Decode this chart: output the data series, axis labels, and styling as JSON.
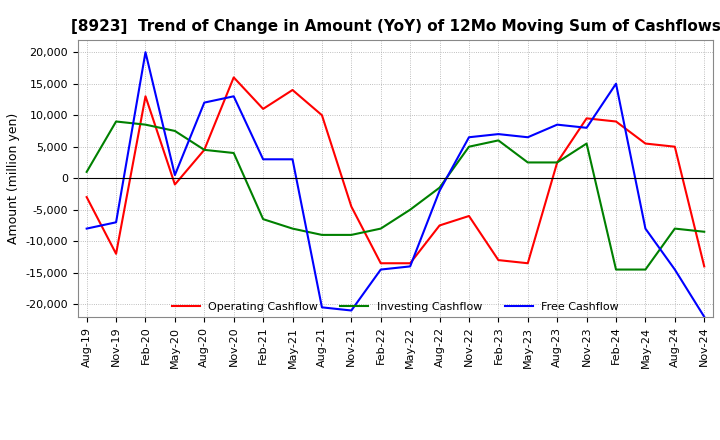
{
  "title": "[8923]  Trend of Change in Amount (YoY) of 12Mo Moving Sum of Cashflows",
  "ylabel": "Amount (million yen)",
  "ylim": [
    -22000,
    22000
  ],
  "yticks": [
    -20000,
    -15000,
    -10000,
    -5000,
    0,
    5000,
    10000,
    15000,
    20000
  ],
  "background_color": "#ffffff",
  "grid_color": "#aaaaaa",
  "labels": [
    "Aug-19",
    "Nov-19",
    "Feb-20",
    "May-20",
    "Aug-20",
    "Nov-20",
    "Feb-21",
    "May-21",
    "Aug-21",
    "Nov-21",
    "Feb-22",
    "May-22",
    "Aug-22",
    "Nov-22",
    "Feb-23",
    "May-23",
    "Aug-23",
    "Nov-23",
    "Feb-24",
    "May-24",
    "Aug-24",
    "Nov-24"
  ],
  "operating": [
    -3000,
    -12000,
    13000,
    -1000,
    4500,
    16000,
    11000,
    14000,
    10000,
    -4500,
    -13500,
    -13500,
    -7500,
    -6000,
    -13000,
    -13500,
    2500,
    9500,
    9000,
    5500,
    5000,
    -14000
  ],
  "investing": [
    1000,
    9000,
    8500,
    7500,
    4500,
    4000,
    -6500,
    -8000,
    -9000,
    -9000,
    -8000,
    -5000,
    -1500,
    5000,
    6000,
    2500,
    2500,
    5500,
    -14500,
    -14500,
    -8000,
    -8500
  ],
  "free": [
    -8000,
    -7000,
    20000,
    500,
    12000,
    13000,
    3000,
    3000,
    -20500,
    -21000,
    -14500,
    -14000,
    -2000,
    6500,
    7000,
    6500,
    8500,
    8000,
    15000,
    -8000,
    -14500,
    -22000
  ],
  "line_colors": {
    "operating": "#ff0000",
    "investing": "#008000",
    "free": "#0000ff"
  },
  "legend": [
    "Operating Cashflow",
    "Investing Cashflow",
    "Free Cashflow"
  ],
  "title_fontsize": 11,
  "tick_fontsize": 8,
  "label_fontsize": 9
}
